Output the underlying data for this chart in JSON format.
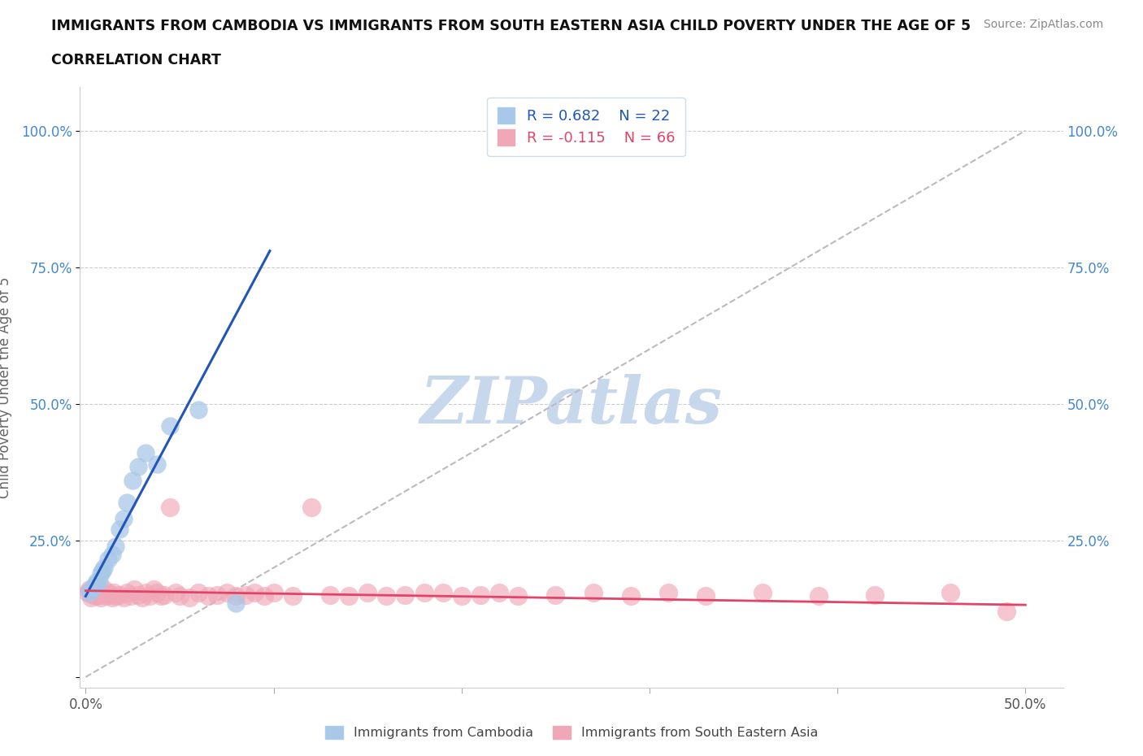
{
  "title_line1": "IMMIGRANTS FROM CAMBODIA VS IMMIGRANTS FROM SOUTH EASTERN ASIA CHILD POVERTY UNDER THE AGE OF 5",
  "title_line2": "CORRELATION CHART",
  "source_text": "Source: ZipAtlas.com",
  "ylabel": "Child Poverty Under the Age of 5",
  "xlim_min": -0.003,
  "xlim_max": 0.52,
  "ylim_min": -0.02,
  "ylim_max": 1.08,
  "grid_color": "#cccccc",
  "background_color": "#ffffff",
  "watermark_text": "ZIPatlas",
  "watermark_color": "#c8d8ec",
  "color_cambodia": "#a8c8e8",
  "color_sea": "#f0a8b8",
  "line_color_cambodia": "#2255bb",
  "line_color_sea": "#e04468",
  "diag_line_color": "#bbbbbb",
  "camb_x": [
    0.002,
    0.003,
    0.004,
    0.005,
    0.006,
    0.007,
    0.008,
    0.009,
    0.01,
    0.012,
    0.014,
    0.016,
    0.018,
    0.02,
    0.022,
    0.025,
    0.028,
    0.032,
    0.038,
    0.045,
    0.06,
    0.08
  ],
  "camb_y": [
    0.155,
    0.16,
    0.165,
    0.17,
    0.175,
    0.175,
    0.19,
    0.195,
    0.2,
    0.215,
    0.225,
    0.24,
    0.27,
    0.29,
    0.32,
    0.36,
    0.385,
    0.41,
    0.39,
    0.46,
    0.49,
    0.135
  ],
  "sea_x": [
    0.001,
    0.002,
    0.003,
    0.004,
    0.005,
    0.006,
    0.006,
    0.007,
    0.008,
    0.009,
    0.01,
    0.011,
    0.012,
    0.013,
    0.014,
    0.015,
    0.016,
    0.018,
    0.02,
    0.022,
    0.024,
    0.026,
    0.028,
    0.03,
    0.032,
    0.034,
    0.036,
    0.038,
    0.04,
    0.042,
    0.045,
    0.048,
    0.05,
    0.055,
    0.06,
    0.065,
    0.07,
    0.075,
    0.08,
    0.085,
    0.09,
    0.095,
    0.1,
    0.11,
    0.12,
    0.13,
    0.14,
    0.15,
    0.16,
    0.17,
    0.18,
    0.19,
    0.2,
    0.21,
    0.22,
    0.23,
    0.25,
    0.27,
    0.29,
    0.31,
    0.33,
    0.36,
    0.39,
    0.42,
    0.46,
    0.49
  ],
  "sea_y": [
    0.155,
    0.16,
    0.145,
    0.15,
    0.155,
    0.148,
    0.165,
    0.15,
    0.145,
    0.155,
    0.16,
    0.148,
    0.155,
    0.15,
    0.145,
    0.155,
    0.148,
    0.15,
    0.145,
    0.155,
    0.148,
    0.16,
    0.15,
    0.145,
    0.155,
    0.148,
    0.16,
    0.155,
    0.148,
    0.15,
    0.31,
    0.155,
    0.148,
    0.145,
    0.155,
    0.148,
    0.15,
    0.155,
    0.148,
    0.15,
    0.155,
    0.148,
    0.155,
    0.148,
    0.31,
    0.15,
    0.148,
    0.155,
    0.148,
    0.15,
    0.155,
    0.155,
    0.148,
    0.15,
    0.155,
    0.148,
    0.15,
    0.155,
    0.148,
    0.155,
    0.148,
    0.155,
    0.148,
    0.15,
    0.155,
    0.12
  ],
  "camb_line_x0": 0.0,
  "camb_line_y0": 0.148,
  "camb_line_x1": 0.098,
  "camb_line_y1": 0.78,
  "sea_line_x0": 0.0,
  "sea_line_y0": 0.158,
  "sea_line_x1": 0.5,
  "sea_line_y1": 0.132
}
